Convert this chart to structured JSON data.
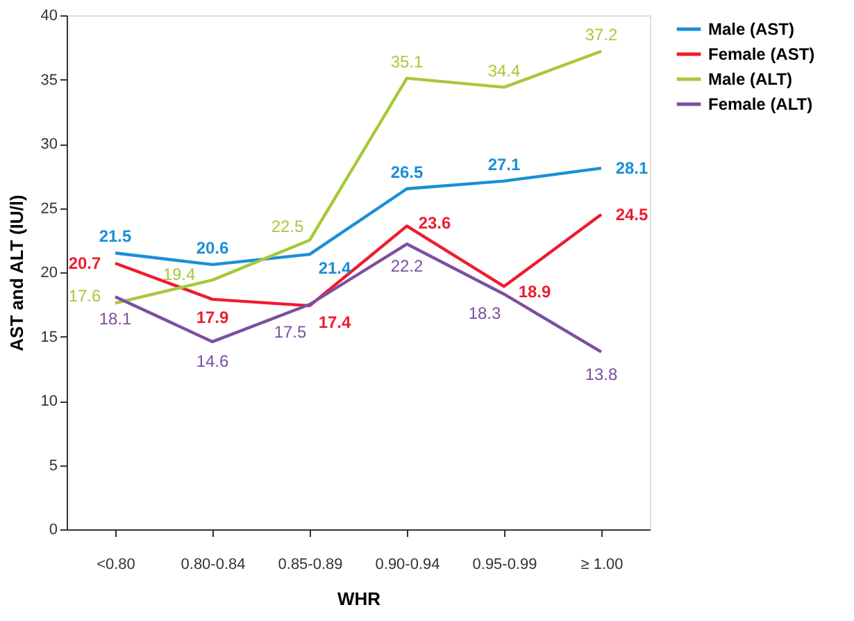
{
  "chart_data": {
    "type": "line",
    "xlabel": "WHR",
    "ylabel": "AST and ALT (IU/l)",
    "categories": [
      "<0.80",
      "0.80-0.84",
      "0.85-0.89",
      "0.90-0.94",
      "0.95-0.99",
      "≥ 1.00"
    ],
    "series": [
      {
        "name": "Male (AST)",
        "color": "#1a8fd6",
        "values": [
          21.5,
          20.6,
          21.4,
          26.5,
          27.1,
          28.1
        ]
      },
      {
        "name": "Female (AST)",
        "color": "#ee1c2e",
        "values": [
          20.7,
          17.9,
          17.4,
          23.6,
          18.9,
          24.5
        ]
      },
      {
        "name": "Male (ALT)",
        "color": "#a6c93a",
        "values": [
          17.6,
          19.4,
          22.5,
          35.1,
          34.4,
          37.2
        ]
      },
      {
        "name": "Female (ALT)",
        "color": "#7b4fa0",
        "values": [
          18.1,
          14.6,
          17.5,
          22.2,
          18.3,
          13.8
        ]
      }
    ],
    "ylim": [
      0,
      40
    ],
    "yticks": [
      0,
      5,
      10,
      15,
      20,
      25,
      30,
      35,
      40
    ],
    "data_labels": true,
    "grid": false,
    "legend": "right",
    "marker": "none",
    "line_style": "solid"
  }
}
